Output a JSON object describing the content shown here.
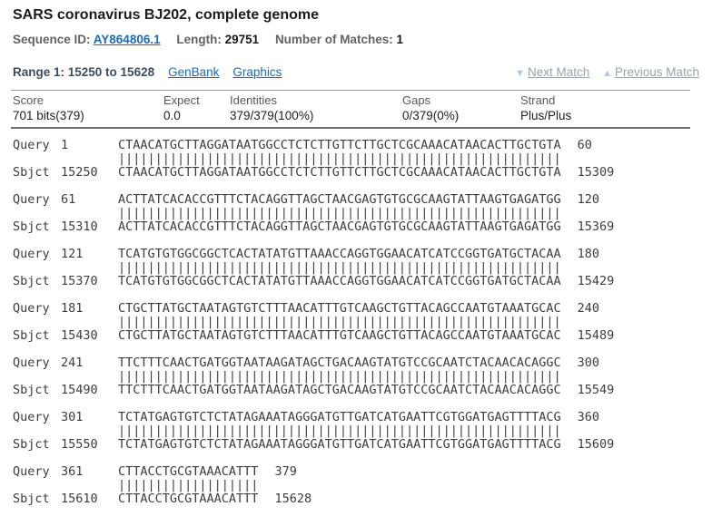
{
  "colors": {
    "link": "#1e6bb8",
    "disabled_link": "#9aa2aa",
    "nav_arrow": "#b4c3d4"
  },
  "header": {
    "title": "SARS coronavirus BJ202, complete genome",
    "sequence_id_label": "Sequence ID: ",
    "sequence_id": "AY864806.1",
    "length_label": "Length: ",
    "length": "29751",
    "matches_label": "Number of Matches: ",
    "matches": "1"
  },
  "range_bar": {
    "range_title": "Range 1: 15250 to 15628",
    "genbank_link": "GenBank",
    "graphics_link": "Graphics",
    "next_icon": "▼",
    "next_match": "Next Match",
    "prev_icon": "▲",
    "previous_match": "Previous Match"
  },
  "stats": {
    "columns": [
      "Score",
      "Expect",
      "Identities",
      "Gaps",
      "Strand"
    ],
    "score": "701 bits(379)",
    "expect": "0.0",
    "identities": "379/379(100%)",
    "gaps": "0/379(0%)",
    "strand": "Plus/Plus"
  },
  "alignment": {
    "query_label": "Query",
    "sbjct_label": "Sbjct",
    "blocks": [
      {
        "q_start": "1",
        "q_seq": "CTAACATGCTTAGGATAATGGCCTCTCTTGTTCTTGCTCGCAAACATAACACTTGCTGTA",
        "q_end": "60",
        "match": "||||||||||||||||||||||||||||||||||||||||||||||||||||||||||||",
        "s_start": "15250",
        "s_seq": "CTAACATGCTTAGGATAATGGCCTCTCTTGTTCTTGCTCGCAAACATAACACTTGCTGTA",
        "s_end": "15309"
      },
      {
        "q_start": "61",
        "q_seq": "ACTTATCACACCGTTTCTACAGGTTAGCTAACGAGTGTGCGCAAGTATTAAGTGAGATGG",
        "q_end": "120",
        "match": "||||||||||||||||||||||||||||||||||||||||||||||||||||||||||||",
        "s_start": "15310",
        "s_seq": "ACTTATCACACCGTTTCTACAGGTTAGCTAACGAGTGTGCGCAAGTATTAAGTGAGATGG",
        "s_end": "15369"
      },
      {
        "q_start": "121",
        "q_seq": "TCATGTGTGGCGGCTCACTATATGTTAAACCAGGTGGAACATCATCCGGTGATGCTACAA",
        "q_end": "180",
        "match": "||||||||||||||||||||||||||||||||||||||||||||||||||||||||||||",
        "s_start": "15370",
        "s_seq": "TCATGTGTGGCGGCTCACTATATGTTAAACCAGGTGGAACATCATCCGGTGATGCTACAA",
        "s_end": "15429"
      },
      {
        "q_start": "181",
        "q_seq": "CTGCTTATGCTAATAGTGTCTTTAACATTTGTCAAGCTGTTACAGCCAATGTAAATGCAC",
        "q_end": "240",
        "match": "||||||||||||||||||||||||||||||||||||||||||||||||||||||||||||",
        "s_start": "15430",
        "s_seq": "CTGCTTATGCTAATAGTGTCTTTAACATTTGTCAAGCTGTTACAGCCAATGTAAATGCAC",
        "s_end": "15489"
      },
      {
        "q_start": "241",
        "q_seq": "TTCTTTCAACTGATGGTAATAAGATAGCTGACAAGTATGTCCGCAATCTACAACACAGGC",
        "q_end": "300",
        "match": "||||||||||||||||||||||||||||||||||||||||||||||||||||||||||||",
        "s_start": "15490",
        "s_seq": "TTCTTTCAACTGATGGTAATAAGATAGCTGACAAGTATGTCCGCAATCTACAACACAGGC",
        "s_end": "15549"
      },
      {
        "q_start": "301",
        "q_seq": "TCTATGAGTGTCTCTATAGAAATAGGGATGTTGATCATGAATTCGTGGATGAGTTTTACG",
        "q_end": "360",
        "match": "||||||||||||||||||||||||||||||||||||||||||||||||||||||||||||",
        "s_start": "15550",
        "s_seq": "TCTATGAGTGTCTCTATAGAAATAGGGATGTTGATCATGAATTCGTGGATGAGTTTTACG",
        "s_end": "15609"
      },
      {
        "q_start": "361",
        "q_seq": "CTTACCTGCGTAAACATTT",
        "q_end": "379",
        "match": "|||||||||||||||||||",
        "s_start": "15610",
        "s_seq": "CTTACCTGCGTAAACATTT",
        "s_end": "15628"
      }
    ]
  }
}
